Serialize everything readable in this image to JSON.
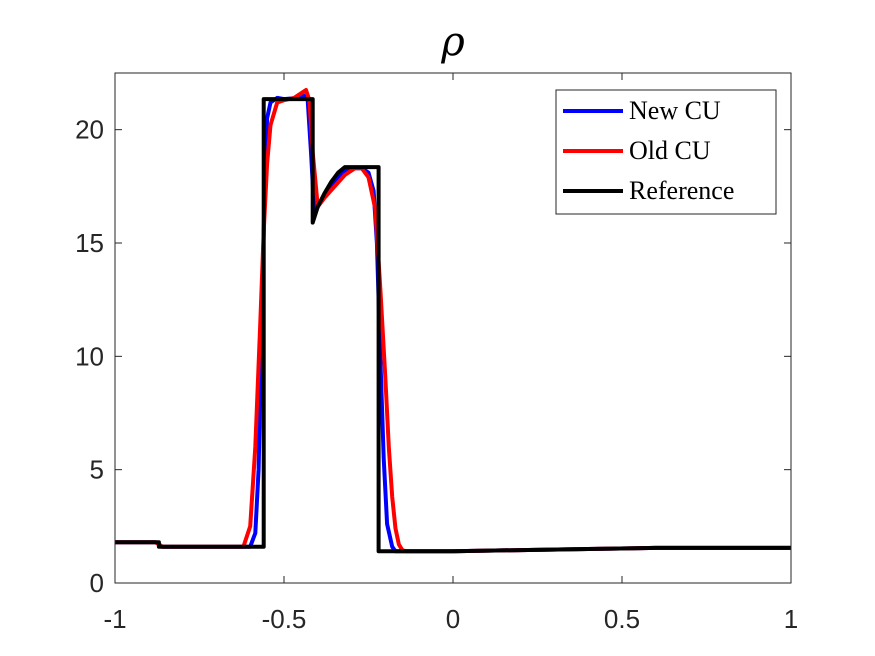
{
  "chart_data": {
    "type": "line",
    "title": "ρ",
    "xlabel": "",
    "ylabel": "",
    "xlim": [
      -1,
      1
    ],
    "ylim": [
      0,
      22.5
    ],
    "xticks": [
      -1,
      -0.5,
      0,
      0.5,
      1
    ],
    "xtick_labels": [
      "-1",
      "-0.5",
      "0",
      "0.5",
      "1"
    ],
    "yticks": [
      0,
      5,
      10,
      15,
      20
    ],
    "ytick_labels": [
      "0",
      "5",
      "10",
      "15",
      "20"
    ],
    "grid": false,
    "legend_position": "top-right",
    "series": [
      {
        "name": "New CU",
        "color": "#0000ff",
        "x": [
          -1,
          -0.88,
          -0.86,
          -0.6,
          -0.585,
          -0.575,
          -0.565,
          -0.557,
          -0.55,
          -0.54,
          -0.52,
          -0.5,
          -0.46,
          -0.44,
          -0.43,
          -0.42,
          -0.41,
          -0.4,
          -0.38,
          -0.35,
          -0.32,
          -0.3,
          -0.27,
          -0.25,
          -0.235,
          -0.225,
          -0.215,
          -0.205,
          -0.195,
          -0.18,
          -0.17,
          -0.15,
          0,
          0.2,
          0.4,
          0.6,
          1
        ],
        "y": [
          1.8,
          1.8,
          1.6,
          1.6,
          2.2,
          5,
          12,
          17.5,
          20.5,
          21.2,
          21.4,
          21.35,
          21.4,
          21.5,
          21.3,
          19,
          16.3,
          16.6,
          17.1,
          17.7,
          18.2,
          18.3,
          18.3,
          18.1,
          17.3,
          15,
          10,
          5.5,
          2.6,
          1.6,
          1.4,
          1.4,
          1.4,
          1.45,
          1.5,
          1.55,
          1.55
        ]
      },
      {
        "name": "Old CU",
        "color": "#ff0000",
        "x": [
          -1,
          -0.88,
          -0.86,
          -0.62,
          -0.6,
          -0.585,
          -0.57,
          -0.56,
          -0.55,
          -0.54,
          -0.52,
          -0.5,
          -0.47,
          -0.45,
          -0.435,
          -0.425,
          -0.415,
          -0.4,
          -0.38,
          -0.35,
          -0.32,
          -0.29,
          -0.27,
          -0.25,
          -0.23,
          -0.215,
          -0.2,
          -0.19,
          -0.18,
          -0.17,
          -0.16,
          -0.15,
          -0.14,
          0,
          0.2,
          0.4,
          0.6,
          1
        ],
        "y": [
          1.8,
          1.8,
          1.6,
          1.6,
          2.5,
          6,
          11.5,
          15.5,
          18.5,
          20.2,
          21.2,
          21.3,
          21.4,
          21.6,
          21.75,
          21.3,
          19,
          16.6,
          17.0,
          17.5,
          18.0,
          18.3,
          18.3,
          17.9,
          16.5,
          13,
          9,
          6,
          3.8,
          2.4,
          1.7,
          1.45,
          1.4,
          1.4,
          1.45,
          1.5,
          1.55,
          1.55
        ]
      },
      {
        "name": "Reference",
        "color": "#000000",
        "x": [
          -1,
          -0.87,
          -0.87,
          -0.56,
          -0.56,
          -0.415,
          -0.415,
          -0.4,
          -0.38,
          -0.36,
          -0.34,
          -0.32,
          -0.31,
          -0.22,
          -0.22,
          0,
          0.2,
          0.4,
          0.6,
          1
        ],
        "y": [
          1.8,
          1.8,
          1.6,
          1.6,
          21.35,
          21.35,
          15.9,
          16.6,
          17.2,
          17.7,
          18.1,
          18.35,
          18.35,
          18.35,
          1.4,
          1.4,
          1.45,
          1.5,
          1.55,
          1.55
        ]
      }
    ]
  }
}
